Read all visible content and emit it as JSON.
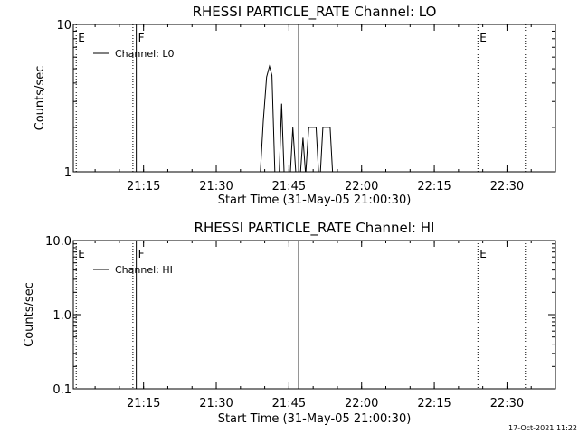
{
  "chart_data": [
    {
      "type": "line",
      "title": "RHESSI  PARTICLE_RATE  Channel:  LO",
      "xlabel": "Start Time (31-May-05 21:00:30)",
      "ylabel": "Counts/sec",
      "x_ticks": [
        "21:15",
        "21:30",
        "21:45",
        "22:00",
        "22:15",
        "22:30"
      ],
      "x_tick_minutes": [
        14.5,
        29.5,
        44.5,
        59.5,
        74.5,
        89.5
      ],
      "y_scale": "log",
      "ylim": [
        1,
        10
      ],
      "y_ticks": [
        "1",
        "10"
      ],
      "y_tick_values": [
        1,
        10
      ],
      "xlim_minutes": [
        0,
        99.5
      ],
      "legend": {
        "label": "Channel: L0",
        "position": "top-left"
      },
      "markers": [
        {
          "label": "E",
          "minute": 0.6,
          "style": "dotted"
        },
        {
          "label": "",
          "minute": 12.3,
          "style": "dotted"
        },
        {
          "label": "F",
          "minute": 13.0,
          "style": "solid"
        },
        {
          "label": "",
          "minute": 46.5,
          "style": "solid"
        },
        {
          "label": "E",
          "minute": 83.5,
          "style": "dotted"
        },
        {
          "label": "",
          "minute": 93.3,
          "style": "dotted"
        }
      ],
      "series": [
        {
          "name": "Channel: L0",
          "points": [
            [
              38.6,
              1.0
            ],
            [
              39.2,
              2.2
            ],
            [
              39.9,
              4.4
            ],
            [
              40.5,
              5.2
            ],
            [
              41.0,
              4.5
            ],
            [
              41.6,
              1.0
            ],
            [
              42.5,
              1.0
            ],
            [
              43.0,
              2.9
            ],
            [
              43.5,
              1.0
            ],
            [
              44.8,
              1.0
            ],
            [
              45.3,
              2.0
            ],
            [
              45.9,
              1.0
            ],
            [
              46.9,
              1.0
            ],
            [
              47.4,
              1.7
            ],
            [
              47.9,
              1.0
            ],
            [
              48.0,
              1.0
            ],
            [
              48.6,
              2.0
            ],
            [
              50.1,
              2.0
            ],
            [
              50.6,
              1.0
            ],
            [
              51.0,
              1.0
            ],
            [
              51.5,
              2.0
            ],
            [
              53.0,
              2.0
            ],
            [
              53.5,
              1.0
            ]
          ]
        }
      ],
      "timestamp": ""
    },
    {
      "type": "line",
      "title": "RHESSI  PARTICLE_RATE  Channel:  HI",
      "xlabel": "Start Time (31-May-05 21:00:30)",
      "ylabel": "Counts/sec",
      "x_ticks": [
        "21:15",
        "21:30",
        "21:45",
        "22:00",
        "22:15",
        "22:30"
      ],
      "x_tick_minutes": [
        14.5,
        29.5,
        44.5,
        59.5,
        74.5,
        89.5
      ],
      "y_scale": "log",
      "ylim": [
        0.1,
        10
      ],
      "y_ticks": [
        "0.1",
        "1.0",
        "10.0"
      ],
      "y_tick_values": [
        0.1,
        1,
        10
      ],
      "xlim_minutes": [
        0,
        99.5
      ],
      "legend": {
        "label": "Channel: HI",
        "position": "top-left"
      },
      "markers": [
        {
          "label": "E",
          "minute": 0.6,
          "style": "dotted"
        },
        {
          "label": "",
          "minute": 12.3,
          "style": "dotted"
        },
        {
          "label": "F",
          "minute": 13.0,
          "style": "solid"
        },
        {
          "label": "",
          "minute": 46.5,
          "style": "solid"
        },
        {
          "label": "E",
          "minute": 83.5,
          "style": "dotted"
        },
        {
          "label": "",
          "minute": 93.3,
          "style": "dotted"
        }
      ],
      "series": [
        {
          "name": "Channel: HI",
          "points": []
        }
      ],
      "timestamp": "17-Oct-2021 11:22"
    }
  ],
  "colors": {
    "background": "#ffffff",
    "foreground": "#000000"
  }
}
